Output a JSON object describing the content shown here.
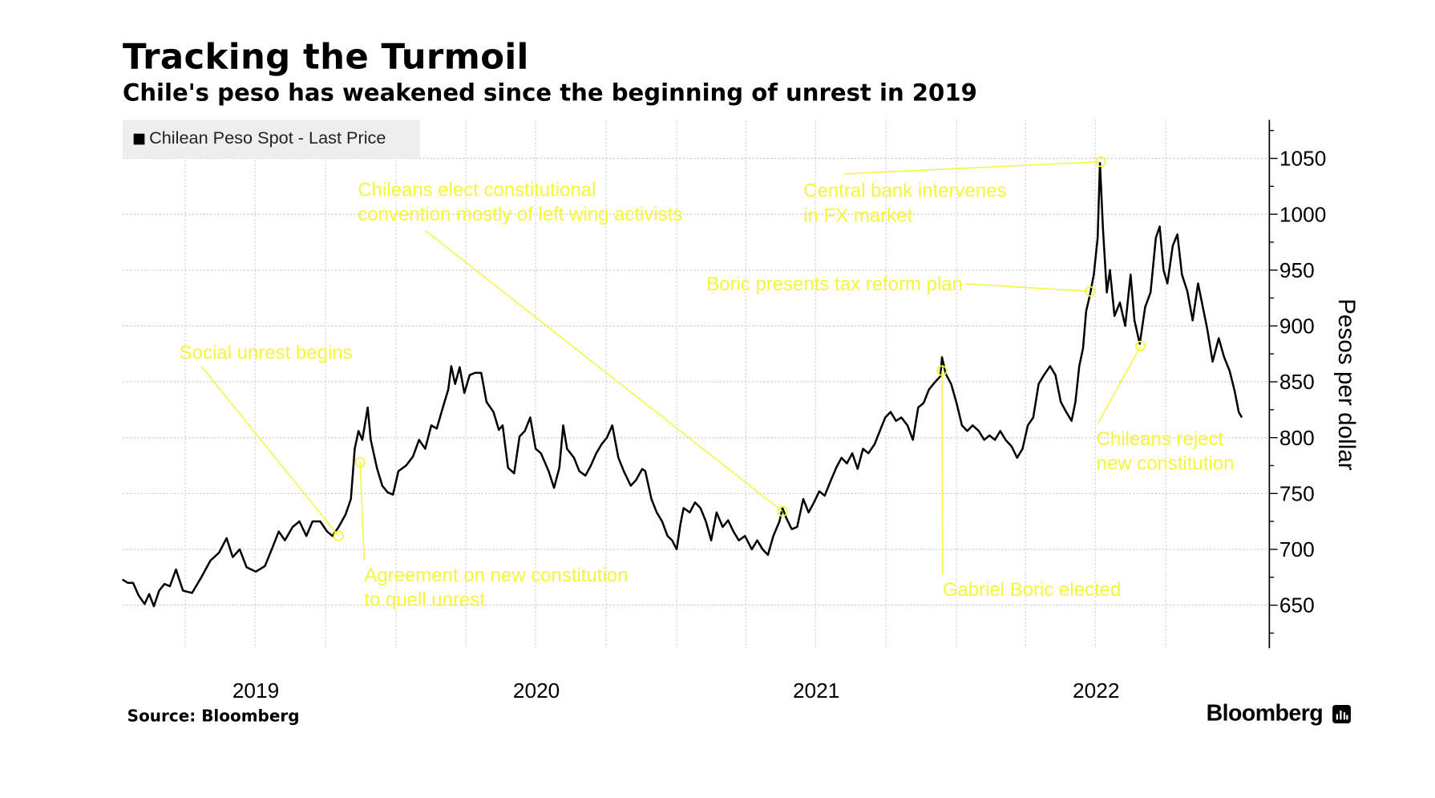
{
  "chart_data": {
    "type": "line",
    "title": "Tracking the Turmoil",
    "subtitle": "Chile's peso has weakened since the beginning of unrest in 2019",
    "xlabel": "",
    "ylabel": "Pesos per dollar",
    "xlim": [
      "2019-01-09",
      "2023-02-12"
    ],
    "ylim": [
      612,
      1084
    ],
    "yticks": [
      650,
      700,
      750,
      800,
      850,
      900,
      950,
      1000,
      1050
    ],
    "ytick_labels": [
      "650",
      "700",
      "750",
      "800",
      "850",
      "900",
      "950",
      "1000",
      "1050"
    ],
    "xtick_labels": [
      "2019",
      "2020",
      "2021",
      "2022"
    ],
    "grid": true,
    "y_axis_side": "right",
    "legend": {
      "position": "top-left"
    },
    "series": [
      {
        "name": "Chilean Peso Spot - Last Price",
        "color": "#000000",
        "points": [
          [
            "2019-01-09",
            673
          ],
          [
            "2019-01-16",
            670
          ],
          [
            "2019-01-23",
            670
          ],
          [
            "2019-01-30",
            659
          ],
          [
            "2019-02-07",
            651
          ],
          [
            "2019-02-13",
            660
          ],
          [
            "2019-02-19",
            649
          ],
          [
            "2019-02-26",
            663
          ],
          [
            "2019-03-05",
            669
          ],
          [
            "2019-03-12",
            667
          ],
          [
            "2019-03-20",
            682
          ],
          [
            "2019-03-29",
            663
          ],
          [
            "2019-04-10",
            661
          ],
          [
            "2019-04-22",
            675
          ],
          [
            "2019-05-04",
            690
          ],
          [
            "2019-05-15",
            697
          ],
          [
            "2019-05-25",
            710
          ],
          [
            "2019-06-02",
            693
          ],
          [
            "2019-06-11",
            700
          ],
          [
            "2019-06-20",
            684
          ],
          [
            "2019-07-02",
            680
          ],
          [
            "2019-07-14",
            685
          ],
          [
            "2019-07-24",
            702
          ],
          [
            "2019-08-01",
            716
          ],
          [
            "2019-08-09",
            708
          ],
          [
            "2019-08-19",
            720
          ],
          [
            "2019-08-28",
            725
          ],
          [
            "2019-09-06",
            712
          ],
          [
            "2019-09-14",
            725
          ],
          [
            "2019-09-24",
            725
          ],
          [
            "2019-10-03",
            716
          ],
          [
            "2019-10-10",
            712
          ],
          [
            "2019-10-18",
            720
          ],
          [
            "2019-10-27",
            731
          ],
          [
            "2019-11-03",
            745
          ],
          [
            "2019-11-08",
            790
          ],
          [
            "2019-11-13",
            806
          ],
          [
            "2019-11-18",
            798
          ],
          [
            "2019-11-25",
            827
          ],
          [
            "2019-11-29",
            798
          ],
          [
            "2019-12-07",
            773
          ],
          [
            "2019-12-14",
            757
          ],
          [
            "2019-12-21",
            751
          ],
          [
            "2019-12-28",
            749
          ],
          [
            "2020-01-04",
            770
          ],
          [
            "2020-01-14",
            775
          ],
          [
            "2020-01-23",
            783
          ],
          [
            "2020-01-31",
            798
          ],
          [
            "2020-02-08",
            790
          ],
          [
            "2020-02-16",
            811
          ],
          [
            "2020-02-23",
            808
          ],
          [
            "2020-03-02",
            827
          ],
          [
            "2020-03-09",
            843
          ],
          [
            "2020-03-13",
            864
          ],
          [
            "2020-03-18",
            848
          ],
          [
            "2020-03-24",
            863
          ],
          [
            "2020-03-30",
            840
          ],
          [
            "2020-04-06",
            856
          ],
          [
            "2020-04-13",
            858
          ],
          [
            "2020-04-21",
            858
          ],
          [
            "2020-04-28",
            832
          ],
          [
            "2020-05-07",
            823
          ],
          [
            "2020-05-14",
            807
          ],
          [
            "2020-05-19",
            811
          ],
          [
            "2020-05-26",
            773
          ],
          [
            "2020-06-03",
            768
          ],
          [
            "2020-06-10",
            801
          ],
          [
            "2020-06-17",
            806
          ],
          [
            "2020-06-24",
            818
          ],
          [
            "2020-07-01",
            790
          ],
          [
            "2020-07-08",
            786
          ],
          [
            "2020-07-18",
            770
          ],
          [
            "2020-07-25",
            755
          ],
          [
            "2020-08-01",
            773
          ],
          [
            "2020-08-06",
            811
          ],
          [
            "2020-08-11",
            790
          ],
          [
            "2020-08-20",
            782
          ],
          [
            "2020-08-27",
            770
          ],
          [
            "2020-09-04",
            766
          ],
          [
            "2020-09-11",
            775
          ],
          [
            "2020-09-18",
            786
          ],
          [
            "2020-09-25",
            794
          ],
          [
            "2020-10-02",
            800
          ],
          [
            "2020-10-09",
            811
          ],
          [
            "2020-10-17",
            782
          ],
          [
            "2020-10-24",
            770
          ],
          [
            "2020-11-02",
            757
          ],
          [
            "2020-11-09",
            762
          ],
          [
            "2020-11-17",
            772
          ],
          [
            "2020-11-21",
            770
          ],
          [
            "2020-11-29",
            745
          ],
          [
            "2020-12-06",
            733
          ],
          [
            "2020-12-13",
            725
          ],
          [
            "2020-12-20",
            712
          ],
          [
            "2020-12-26",
            708
          ],
          [
            "2021-01-01",
            700
          ],
          [
            "2021-01-06",
            723
          ],
          [
            "2021-01-10",
            737
          ],
          [
            "2021-01-18",
            733
          ],
          [
            "2021-01-25",
            742
          ],
          [
            "2021-02-01",
            737
          ],
          [
            "2021-02-08",
            725
          ],
          [
            "2021-02-15",
            708
          ],
          [
            "2021-02-22",
            733
          ],
          [
            "2021-03-02",
            720
          ],
          [
            "2021-03-09",
            726
          ],
          [
            "2021-03-16",
            716
          ],
          [
            "2021-03-23",
            708
          ],
          [
            "2021-03-31",
            712
          ],
          [
            "2021-04-09",
            700
          ],
          [
            "2021-04-16",
            708
          ],
          [
            "2021-04-23",
            700
          ],
          [
            "2021-04-30",
            695
          ],
          [
            "2021-05-07",
            712
          ],
          [
            "2021-05-15",
            725
          ],
          [
            "2021-05-19",
            737
          ],
          [
            "2021-05-24",
            728
          ],
          [
            "2021-05-31",
            718
          ],
          [
            "2021-06-07",
            720
          ],
          [
            "2021-06-15",
            745
          ],
          [
            "2021-06-22",
            733
          ],
          [
            "2021-06-29",
            742
          ],
          [
            "2021-07-06",
            752
          ],
          [
            "2021-07-13",
            748
          ],
          [
            "2021-07-20",
            760
          ],
          [
            "2021-07-28",
            773
          ],
          [
            "2021-08-04",
            782
          ],
          [
            "2021-08-11",
            777
          ],
          [
            "2021-08-18",
            786
          ],
          [
            "2021-08-25",
            772
          ],
          [
            "2021-09-01",
            790
          ],
          [
            "2021-09-08",
            786
          ],
          [
            "2021-09-16",
            794
          ],
          [
            "2021-09-23",
            806
          ],
          [
            "2021-09-30",
            818
          ],
          [
            "2021-10-07",
            823
          ],
          [
            "2021-10-14",
            815
          ],
          [
            "2021-10-21",
            818
          ],
          [
            "2021-10-29",
            811
          ],
          [
            "2021-11-05",
            798
          ],
          [
            "2021-11-12",
            827
          ],
          [
            "2021-11-19",
            831
          ],
          [
            "2021-11-26",
            843
          ],
          [
            "2021-12-03",
            849
          ],
          [
            "2021-12-11",
            855
          ],
          [
            "2021-12-13",
            872
          ],
          [
            "2021-12-18",
            857
          ],
          [
            "2021-12-25",
            848
          ],
          [
            "2022-01-01",
            831
          ],
          [
            "2022-01-08",
            811
          ],
          [
            "2022-01-15",
            806
          ],
          [
            "2022-01-22",
            811
          ],
          [
            "2022-01-30",
            806
          ],
          [
            "2022-02-06",
            798
          ],
          [
            "2022-02-13",
            802
          ],
          [
            "2022-02-20",
            798
          ],
          [
            "2022-02-27",
            806
          ],
          [
            "2022-03-06",
            798
          ],
          [
            "2022-03-14",
            792
          ],
          [
            "2022-03-21",
            782
          ],
          [
            "2022-03-28",
            790
          ],
          [
            "2022-04-04",
            811
          ],
          [
            "2022-04-11",
            818
          ],
          [
            "2022-04-18",
            848
          ],
          [
            "2022-04-25",
            856
          ],
          [
            "2022-05-03",
            864
          ],
          [
            "2022-05-10",
            856
          ],
          [
            "2022-05-17",
            832
          ],
          [
            "2022-05-24",
            823
          ],
          [
            "2022-05-31",
            815
          ],
          [
            "2022-06-05",
            832
          ],
          [
            "2022-06-10",
            864
          ],
          [
            "2022-06-15",
            880
          ],
          [
            "2022-06-19",
            913
          ],
          [
            "2022-06-24",
            928
          ],
          [
            "2022-06-29",
            946
          ],
          [
            "2022-07-04",
            979
          ],
          [
            "2022-07-07",
            1046
          ],
          [
            "2022-07-11",
            987
          ],
          [
            "2022-07-16",
            930
          ],
          [
            "2022-07-20",
            950
          ],
          [
            "2022-07-26",
            909
          ],
          [
            "2022-08-02",
            921
          ],
          [
            "2022-08-09",
            900
          ],
          [
            "2022-08-16",
            946
          ],
          [
            "2022-08-21",
            905
          ],
          [
            "2022-08-28",
            884
          ],
          [
            "2022-09-04",
            917
          ],
          [
            "2022-09-11",
            930
          ],
          [
            "2022-09-18",
            979
          ],
          [
            "2022-09-23",
            989
          ],
          [
            "2022-09-28",
            950
          ],
          [
            "2022-10-03",
            938
          ],
          [
            "2022-10-10",
            972
          ],
          [
            "2022-10-16",
            982
          ],
          [
            "2022-10-22",
            946
          ],
          [
            "2022-10-29",
            931
          ],
          [
            "2022-11-05",
            905
          ],
          [
            "2022-11-12",
            938
          ],
          [
            "2022-11-17",
            921
          ],
          [
            "2022-11-24",
            897
          ],
          [
            "2022-12-01",
            868
          ],
          [
            "2022-12-09",
            889
          ],
          [
            "2022-12-16",
            872
          ],
          [
            "2022-12-23",
            860
          ],
          [
            "2022-12-30",
            841
          ],
          [
            "2023-01-04",
            823
          ],
          [
            "2023-01-08",
            818
          ]
        ]
      }
    ],
    "annotation_color": "#f5f53a",
    "annotations": [
      {
        "lines": [
          "Social unrest begins"
        ],
        "date": "2019-10-18",
        "value": 712
      },
      {
        "lines": [
          "Agreement on new constitution",
          "to quell unrest"
        ],
        "date": "2019-11-15",
        "value": 778
      },
      {
        "lines": [
          "Chileans elect constitutional",
          "convention mostly of left wing activists"
        ],
        "date": "2021-05-19",
        "value": 734
      },
      {
        "lines": [
          "Central bank intervenes",
          "in FX market"
        ],
        "date": "2022-07-08",
        "value": 1047
      },
      {
        "lines": [
          "Boric presents tax reform plan"
        ],
        "date": "2022-06-24",
        "value": 931
      },
      {
        "lines": [
          "Gabriel Boric elected"
        ],
        "date": "2021-12-13",
        "value": 860
      },
      {
        "lines": [
          "Chileans reject",
          "new constitution"
        ],
        "date": "2022-08-29",
        "value": 882
      }
    ]
  },
  "footer": {
    "source": "Source: Bloomberg",
    "brand": "Bloomberg",
    "brand_icon": "bloomberg-terminal-icon"
  }
}
